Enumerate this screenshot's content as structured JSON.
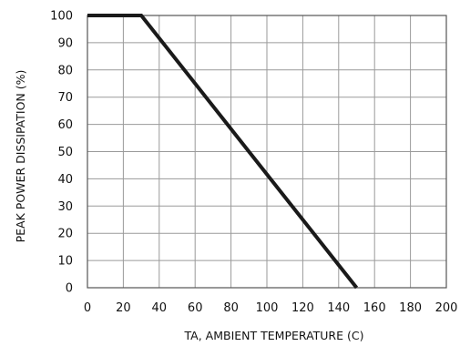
{
  "chart_data": {
    "type": "line",
    "xlabel": "TA, AMBIENT TEMPERATURE (C)",
    "ylabel": "PEAK POWER DISSIPATION (%)",
    "xlim": [
      0,
      200
    ],
    "ylim": [
      0,
      100
    ],
    "x_ticks": [
      0,
      20,
      40,
      60,
      80,
      100,
      120,
      140,
      160,
      180,
      200
    ],
    "y_ticks": [
      0,
      10,
      20,
      30,
      40,
      50,
      60,
      70,
      80,
      90,
      100
    ],
    "grid": true,
    "series": [
      {
        "x": [
          0,
          30,
          150
        ],
        "y": [
          100,
          100,
          0
        ]
      }
    ],
    "colors": {
      "line": "#1a1a1a",
      "grid": "#9a9a9a",
      "frame": "#555555"
    }
  }
}
